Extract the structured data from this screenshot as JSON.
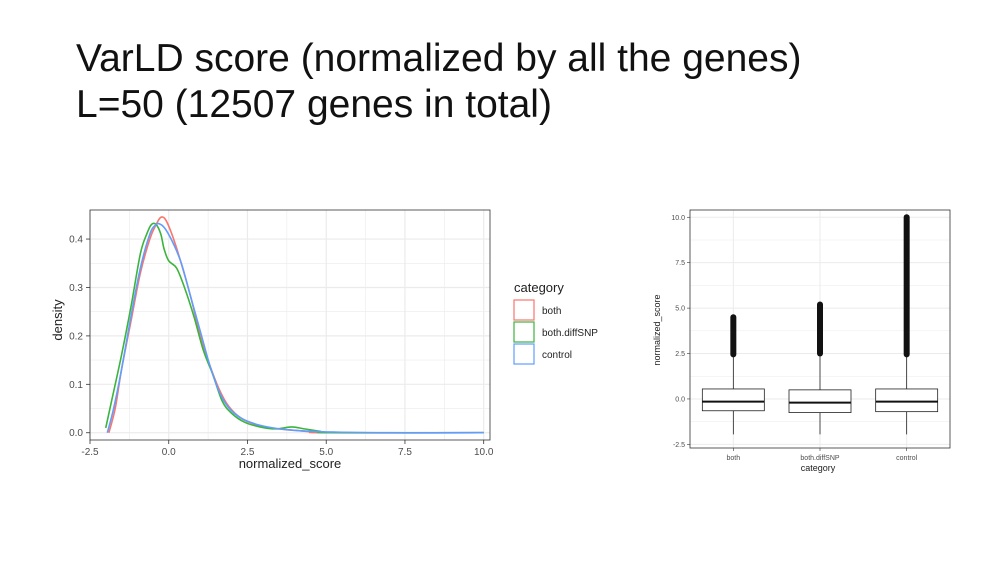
{
  "slide": {
    "title_line1": "VarLD score (normalized by all the genes)",
    "title_line2": "L=50 (12507 genes in total)"
  },
  "colors": {
    "both": "#f8766d",
    "both_diffSNP": "#3cb43c",
    "control": "#619cff",
    "panel_border": "#333333",
    "grid": "#ebebeb"
  },
  "chart_data": [
    {
      "type": "line",
      "subtype": "density",
      "xlabel": "normalized_score",
      "ylabel": "density",
      "xlim": [
        -2.5,
        10.2
      ],
      "ylim": [
        -0.015,
        0.46
      ],
      "xticks": [
        -2.5,
        0.0,
        2.5,
        5.0,
        7.5,
        10.0
      ],
      "xtick_labels": [
        "-2.5",
        "0.0",
        "2.5",
        "5.0",
        "7.5",
        "10.0"
      ],
      "yticks": [
        0.0,
        0.1,
        0.2,
        0.3,
        0.4
      ],
      "ytick_labels": [
        "0.0",
        "0.1",
        "0.2",
        "0.3",
        "0.4"
      ],
      "grid": true,
      "legend": {
        "title": "category",
        "position": "right"
      },
      "series": [
        {
          "name": "both",
          "color_key": "both",
          "points": [
            [
              -1.9,
              0.0
            ],
            [
              -1.7,
              0.05
            ],
            [
              -1.5,
              0.13
            ],
            [
              -1.2,
              0.23
            ],
            [
              -0.9,
              0.33
            ],
            [
              -0.6,
              0.4
            ],
            [
              -0.4,
              0.43
            ],
            [
              -0.25,
              0.445
            ],
            [
              -0.1,
              0.44
            ],
            [
              0.1,
              0.41
            ],
            [
              0.35,
              0.36
            ],
            [
              0.7,
              0.28
            ],
            [
              1.0,
              0.2
            ],
            [
              1.3,
              0.14
            ],
            [
              1.6,
              0.09
            ],
            [
              1.9,
              0.055
            ],
            [
              2.3,
              0.03
            ],
            [
              2.8,
              0.016
            ],
            [
              3.3,
              0.009
            ],
            [
              4.0,
              0.005
            ],
            [
              4.5,
              0.002
            ],
            [
              5.0,
              0.0
            ],
            [
              10.0,
              0.0
            ]
          ]
        },
        {
          "name": "both.diffSNP",
          "color_key": "both_diffSNP",
          "points": [
            [
              -2.0,
              0.01
            ],
            [
              -1.8,
              0.07
            ],
            [
              -1.5,
              0.16
            ],
            [
              -1.2,
              0.26
            ],
            [
              -0.9,
              0.37
            ],
            [
              -0.7,
              0.41
            ],
            [
              -0.55,
              0.43
            ],
            [
              -0.4,
              0.43
            ],
            [
              -0.25,
              0.41
            ],
            [
              -0.15,
              0.38
            ],
            [
              0.0,
              0.355
            ],
            [
              0.25,
              0.34
            ],
            [
              0.5,
              0.3
            ],
            [
              0.8,
              0.24
            ],
            [
              1.1,
              0.17
            ],
            [
              1.4,
              0.12
            ],
            [
              1.7,
              0.065
            ],
            [
              2.0,
              0.04
            ],
            [
              2.4,
              0.022
            ],
            [
              2.9,
              0.012
            ],
            [
              3.4,
              0.008
            ],
            [
              3.9,
              0.012
            ],
            [
              4.3,
              0.008
            ],
            [
              4.8,
              0.003
            ],
            [
              5.2,
              0.0
            ],
            [
              10.0,
              0.0
            ]
          ]
        },
        {
          "name": "control",
          "color_key": "control",
          "points": [
            [
              -1.95,
              0.0
            ],
            [
              -1.75,
              0.05
            ],
            [
              -1.5,
              0.13
            ],
            [
              -1.2,
              0.24
            ],
            [
              -0.9,
              0.34
            ],
            [
              -0.6,
              0.41
            ],
            [
              -0.4,
              0.43
            ],
            [
              -0.25,
              0.43
            ],
            [
              -0.1,
              0.42
            ],
            [
              0.15,
              0.39
            ],
            [
              0.4,
              0.35
            ],
            [
              0.7,
              0.28
            ],
            [
              1.0,
              0.21
            ],
            [
              1.3,
              0.14
            ],
            [
              1.6,
              0.085
            ],
            [
              1.9,
              0.052
            ],
            [
              2.3,
              0.03
            ],
            [
              2.8,
              0.017
            ],
            [
              3.3,
              0.01
            ],
            [
              3.8,
              0.006
            ],
            [
              4.5,
              0.003
            ],
            [
              5.5,
              0.001
            ],
            [
              7.0,
              0.0
            ],
            [
              10.0,
              0.0
            ]
          ]
        }
      ]
    },
    {
      "type": "box",
      "xlabel": "category",
      "ylabel": "normalized_score",
      "ylim": [
        -2.7,
        10.4
      ],
      "yticks": [
        -2.5,
        0.0,
        2.5,
        5.0,
        7.5,
        10.0
      ],
      "ytick_labels": [
        "-2.5",
        "0.0",
        "2.5",
        "5.0",
        "7.5",
        "10.0"
      ],
      "categories": [
        "both",
        "both.diffSNP",
        "control"
      ],
      "grid": true,
      "boxes": [
        {
          "category": "both",
          "whisker_low": -1.95,
          "q1": -0.65,
          "median": -0.15,
          "q3": 0.55,
          "whisker_high": 2.4,
          "outlier_low": 2.45,
          "outlier_high": 4.5
        },
        {
          "category": "both.diffSNP",
          "whisker_low": -1.95,
          "q1": -0.75,
          "median": -0.2,
          "q3": 0.5,
          "whisker_high": 2.45,
          "outlier_low": 2.5,
          "outlier_high": 5.2
        },
        {
          "category": "control",
          "whisker_low": -1.95,
          "q1": -0.7,
          "median": -0.15,
          "q3": 0.55,
          "whisker_high": 2.4,
          "outlier_low": 2.45,
          "outlier_high": 10.0
        }
      ]
    }
  ]
}
